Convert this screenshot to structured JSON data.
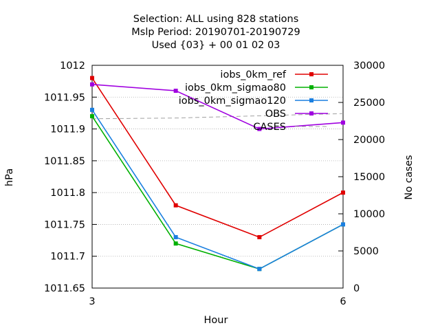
{
  "chart_data": {
    "type": "line",
    "title_lines": [
      "Selection: ALL using   828 stations",
      "Mslp   Period: 20190701-20190729",
      "Used {03} + 00 01 02 03"
    ],
    "xlabel": "Hour",
    "ylabel": "hPa",
    "y2label": "No cases",
    "xlim": [
      3,
      6
    ],
    "ylim": [
      1011.65,
      1012
    ],
    "y2lim": [
      0,
      30000
    ],
    "x_ticks": [
      "3",
      "6"
    ],
    "x_tick_values": [
      3,
      6
    ],
    "y_ticks": [
      "1011.65",
      "1011.7",
      "1011.75",
      "1011.8",
      "1011.85",
      "1011.9",
      "1011.95",
      "1012"
    ],
    "y_tick_values": [
      1011.65,
      1011.7,
      1011.75,
      1011.8,
      1011.85,
      1011.9,
      1011.95,
      1012
    ],
    "y2_ticks": [
      "0",
      "5000",
      "10000",
      "15000",
      "20000",
      "25000",
      "30000"
    ],
    "y2_tick_values": [
      0,
      5000,
      10000,
      15000,
      20000,
      25000,
      30000
    ],
    "grid": true,
    "legend_position": "top-right",
    "x": [
      3,
      4,
      5,
      6
    ],
    "series": [
      {
        "name": "iobs_0km_ref",
        "color": "#e00000",
        "axis": "y",
        "values": [
          1011.98,
          1011.78,
          1011.73,
          1011.8
        ]
      },
      {
        "name": "iobs_0km_sigmao80",
        "color": "#00b000",
        "axis": "y",
        "values": [
          1011.92,
          1011.72,
          1011.68,
          1011.75
        ]
      },
      {
        "name": "iobs_0km_sigmao120",
        "color": "#1a7fe0",
        "axis": "y",
        "values": [
          1011.93,
          1011.73,
          1011.68,
          1011.75
        ]
      },
      {
        "name": "OBS",
        "color": "#a000e0",
        "axis": "y",
        "values": [
          1011.97,
          1011.96,
          1011.9,
          1011.91
        ]
      },
      {
        "name": "CASES",
        "color": "#a0a0a0",
        "axis": "y2",
        "dashed": true,
        "values": [
          22800,
          22900,
          23200,
          23500
        ]
      }
    ]
  }
}
